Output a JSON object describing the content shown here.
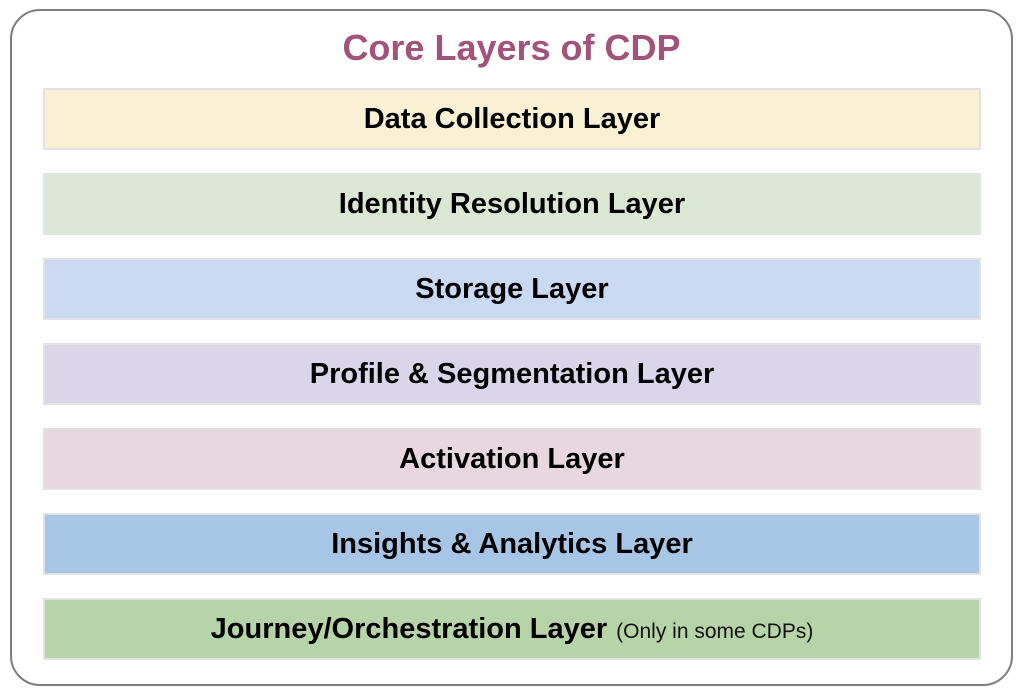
{
  "title": "Core Layers of CDP",
  "colors": {
    "title": "#A1537A",
    "panel_border": "#7E7E7E",
    "bar_border": "#E2E2E2",
    "label_text": "#000000",
    "background": "#FFFFFF"
  },
  "layers": [
    {
      "id": "data-collection",
      "label": "Data Collection Layer",
      "color": "#FAF1D4"
    },
    {
      "id": "identity-resolution",
      "label": "Identity Resolution Layer",
      "color": "#DBE7D3"
    },
    {
      "id": "storage",
      "label": "Storage Layer",
      "color": "#CAD9F2"
    },
    {
      "id": "profile-segmentation",
      "label": "Profile & Segmentation Layer",
      "color": "#DAD5E9"
    },
    {
      "id": "activation",
      "label": "Activation Layer",
      "color": "#E9D7DF"
    },
    {
      "id": "insights-analytics",
      "label": "Insights & Analytics Layer",
      "color": "#A7C6E6"
    },
    {
      "id": "journey-orchestration",
      "label": "Journey/Orchestration Layer",
      "note": "(Only in some CDPs)",
      "color": "#B7D4A9"
    }
  ]
}
